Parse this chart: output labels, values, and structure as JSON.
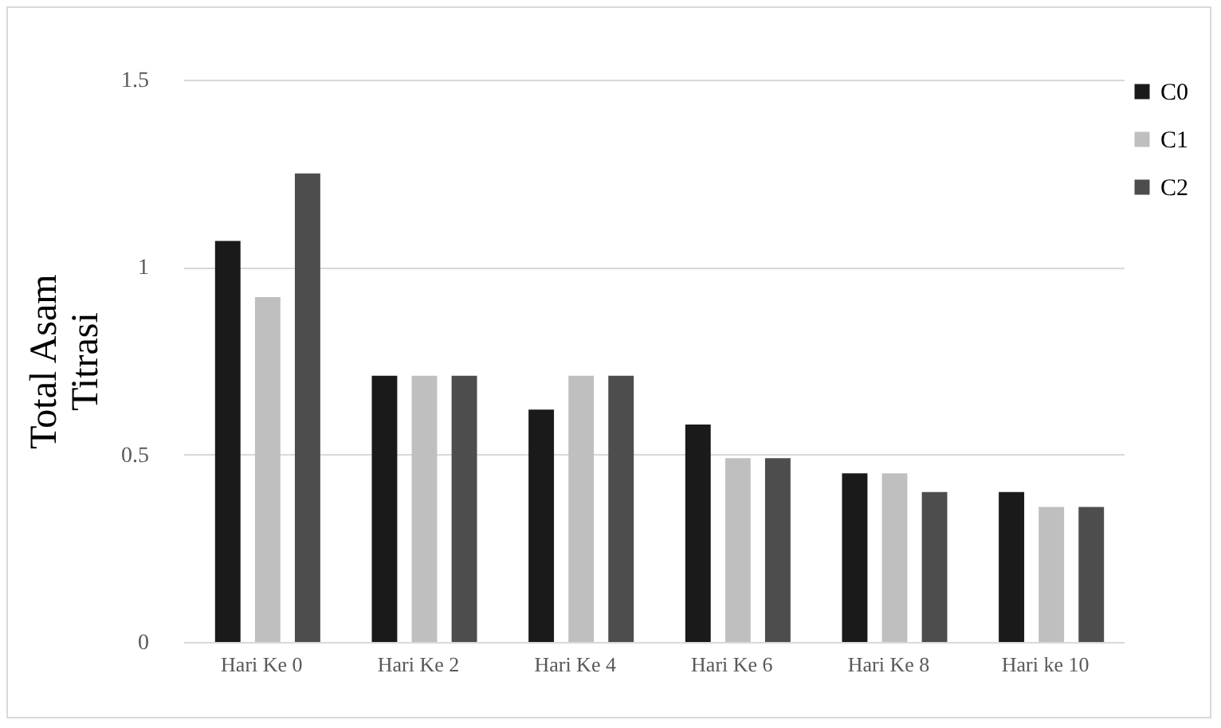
{
  "chart_data": {
    "type": "bar",
    "ylabel": "Total Asam Titrasi",
    "categories": [
      "Hari Ke 0",
      "Hari Ke 2",
      "Hari Ke 4",
      "Hari Ke 6",
      "Hari Ke 8",
      "Hari ke 10"
    ],
    "series": [
      {
        "name": "C0",
        "color": "#1a1a1a",
        "values": [
          1.07,
          0.71,
          0.62,
          0.58,
          0.45,
          0.4
        ]
      },
      {
        "name": "C1",
        "color": "#bfbfbf",
        "values": [
          0.92,
          0.71,
          0.71,
          0.49,
          0.45,
          0.36
        ]
      },
      {
        "name": "C2",
        "color": "#4d4d4d",
        "values": [
          1.25,
          0.71,
          0.71,
          0.49,
          0.4,
          0.36
        ]
      }
    ],
    "ylim": [
      0,
      1.5
    ],
    "yticks": [
      0,
      0.5,
      1,
      1.5
    ],
    "grid": "y",
    "legend": "right"
  }
}
